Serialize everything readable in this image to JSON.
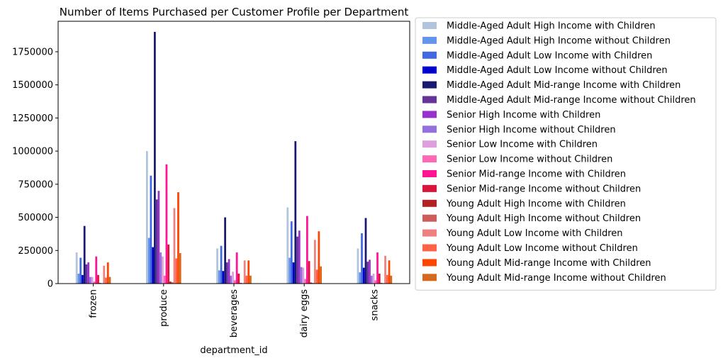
{
  "chart_data": {
    "type": "bar",
    "title": "Number of Items Purchased per Customer Profile per Department",
    "xlabel": "department_id",
    "ylabel": "",
    "categories": [
      "frozen",
      "produce",
      "beverages",
      "dairy eggs",
      "snacks"
    ],
    "ylim": [
      0,
      1980000
    ],
    "yticks": [
      0,
      250000,
      500000,
      750000,
      1000000,
      1250000,
      1500000,
      1750000
    ],
    "ytick_labels": [
      "0",
      "250000",
      "500000",
      "750000",
      "1000000",
      "1250000",
      "1500000",
      "1750000"
    ],
    "grid": false,
    "legend_placement": "outside-right",
    "series": [
      {
        "name": "Middle-Aged Adult High Income with Children",
        "color": "#b0c4de",
        "values": [
          235000,
          1000000,
          265000,
          575000,
          265000
        ]
      },
      {
        "name": "Middle-Aged Adult High Income without Children",
        "color": "#6495ed",
        "values": [
          75000,
          345000,
          100000,
          195000,
          85000
        ]
      },
      {
        "name": "Middle-Aged Adult Low Income with Children",
        "color": "#4169e1",
        "values": [
          195000,
          815000,
          285000,
          470000,
          380000
        ]
      },
      {
        "name": "Middle-Aged Adult Low Income without Children",
        "color": "#0000cd",
        "values": [
          65000,
          275000,
          95000,
          160000,
          120000
        ]
      },
      {
        "name": "Middle-Aged Adult Mid-range Income with Children",
        "color": "#191970",
        "values": [
          435000,
          1900000,
          500000,
          1075000,
          495000
        ]
      },
      {
        "name": "Middle-Aged Adult Mid-range Income without Children",
        "color": "#663399",
        "values": [
          145000,
          635000,
          160000,
          355000,
          165000
        ]
      },
      {
        "name": "Senior High Income with Children",
        "color": "#9932cc",
        "values": [
          160000,
          700000,
          185000,
          400000,
          180000
        ]
      },
      {
        "name": "Senior High Income without Children",
        "color": "#9370db",
        "values": [
          50000,
          235000,
          60000,
          125000,
          60000
        ]
      },
      {
        "name": "Senior Low Income with Children",
        "color": "#dda0dd",
        "values": [
          50000,
          205000,
          90000,
          120000,
          75000
        ]
      },
      {
        "name": "Senior Low Income without Children",
        "color": "#ff69b4",
        "values": [
          15000,
          60000,
          25000,
          35000,
          25000
        ]
      },
      {
        "name": "Senior Mid-range Income with Children",
        "color": "#ff1493",
        "values": [
          205000,
          900000,
          235000,
          510000,
          235000
        ]
      },
      {
        "name": "Senior Mid-range Income without Children",
        "color": "#dc143c",
        "values": [
          65000,
          295000,
          75000,
          170000,
          75000
        ]
      },
      {
        "name": "Young Adult High Income with Children",
        "color": "#b22222",
        "values": [
          5000,
          15000,
          5000,
          8000,
          5000
        ]
      },
      {
        "name": "Young Adult High Income without Children",
        "color": "#cd5c5c",
        "values": [
          3000,
          10000,
          3000,
          5000,
          3000
        ]
      },
      {
        "name": "Young Adult Low Income with Children",
        "color": "#f08080",
        "values": [
          135000,
          570000,
          175000,
          330000,
          210000
        ]
      },
      {
        "name": "Young Adult Low Income without Children",
        "color": "#ff6347",
        "values": [
          45000,
          190000,
          60000,
          105000,
          65000
        ]
      },
      {
        "name": "Young Adult Mid-range Income with Children",
        "color": "#ff4500",
        "values": [
          160000,
          690000,
          175000,
          395000,
          175000
        ]
      },
      {
        "name": "Young Adult Mid-range Income without Children",
        "color": "#d2691e",
        "values": [
          50000,
          230000,
          60000,
          130000,
          60000
        ]
      }
    ]
  }
}
